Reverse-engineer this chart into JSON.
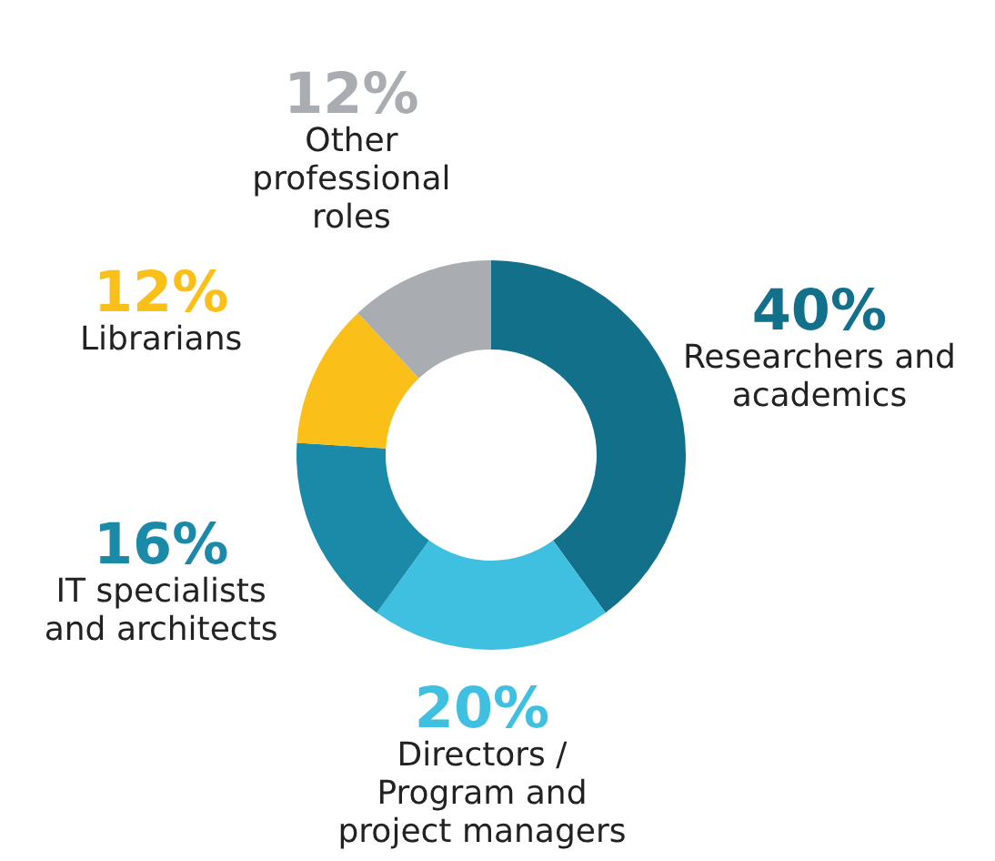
{
  "chart_data": {
    "type": "donut",
    "categories": [
      "Researchers and academics",
      "Directors / Program and project managers",
      "IT specialists and architects",
      "Librarians",
      "Other professional roles"
    ],
    "values": [
      40,
      20,
      16,
      12,
      12
    ],
    "colors": [
      "#12708a",
      "#3fc0e0",
      "#1a8aa8",
      "#fbbf1a",
      "#a9acb0"
    ],
    "value_labels": [
      "40%",
      "20%",
      "16%",
      "12%",
      "12%"
    ]
  }
}
